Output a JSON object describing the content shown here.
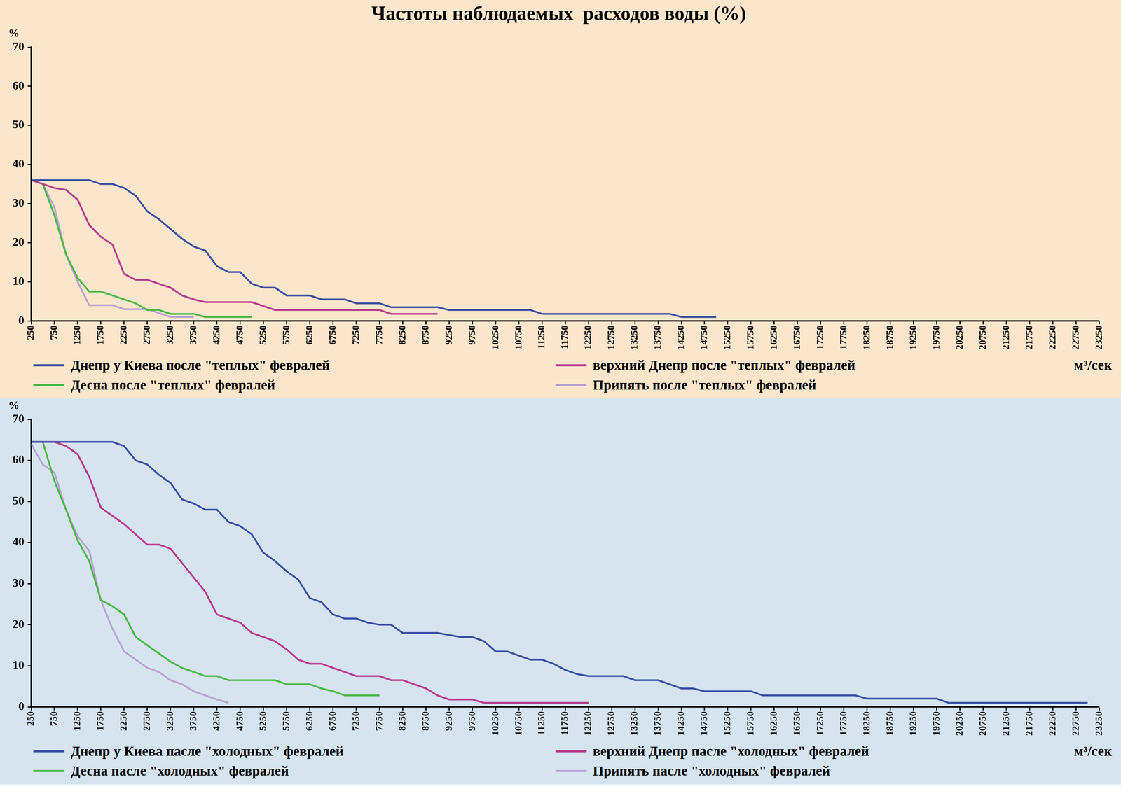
{
  "chart_data": [
    {
      "type": "line",
      "title": "Частоты наблюдаемых  расходов воды (%)",
      "y_label": "%",
      "x_label": "м³/сек",
      "x": [
        250,
        500,
        750,
        1000,
        1250,
        1500,
        1750,
        2000,
        2250,
        2500,
        2750,
        3000,
        3250,
        3500,
        3750,
        4000,
        4250,
        4500,
        4750,
        5000,
        5250,
        5500,
        5750,
        6000,
        6250,
        6500,
        6750,
        7000,
        7250,
        7500,
        7750,
        8000,
        8250,
        8500,
        8750,
        9000,
        9250,
        9500,
        9750,
        10000,
        10250,
        10500,
        10750,
        11000,
        11250,
        11500,
        11750,
        12000,
        12250,
        12500,
        12750,
        13000,
        13250,
        13500,
        13750,
        14000,
        14250,
        14500,
        14750,
        15000
      ],
      "xlim": [
        250,
        23250
      ],
      "xticks": [
        250,
        750,
        1250,
        1750,
        2250,
        2750,
        3250,
        3750,
        4250,
        4750,
        5250,
        5750,
        6250,
        6750,
        7250,
        7750,
        8250,
        8750,
        9250,
        9750,
        10250,
        10750,
        11250,
        11750,
        12250,
        12750,
        13250,
        13750,
        14250,
        14750,
        15250,
        15750,
        16250,
        16750,
        17250,
        17750,
        18250,
        18750,
        19250,
        19750,
        20250,
        20750,
        21250,
        21750,
        22250,
        22750,
        23250
      ],
      "ylim": [
        0,
        70
      ],
      "yticks": [
        0,
        10,
        20,
        30,
        40,
        50,
        60,
        70
      ],
      "grid": false,
      "legend": "bottom",
      "series": [
        {
          "name": "Днепр у Киева после \"теплых\" февралей",
          "color": "#3b4fa3",
          "values": [
            36,
            36,
            36,
            36,
            36,
            36,
            35,
            35,
            34,
            32,
            28,
            26,
            23.5,
            21,
            19,
            18,
            14,
            12.5,
            12.5,
            9.5,
            8.5,
            8.5,
            6.5,
            6.5,
            6.5,
            5.5,
            5.5,
            5.5,
            4.5,
            4.5,
            4.5,
            3.5,
            3.5,
            3.5,
            3.5,
            3.5,
            2.8,
            2.8,
            2.8,
            2.8,
            2.8,
            2.8,
            2.8,
            2.8,
            1.8,
            1.8,
            1.8,
            1.8,
            1.8,
            1.8,
            1.8,
            1.8,
            1.8,
            1.8,
            1.8,
            1.8,
            1,
            1,
            1,
            1
          ]
        },
        {
          "name": "верхний Днепр после \"теплых\" февралей",
          "color": "#b83c8f",
          "values": [
            36,
            35,
            34,
            33.5,
            31,
            24.5,
            21.5,
            19.5,
            12,
            10.5,
            10.5,
            9.5,
            8.5,
            6.5,
            5.5,
            4.8,
            4.8,
            4.8,
            4.8,
            4.8,
            3.8,
            2.8,
            2.8,
            2.8,
            2.8,
            2.8,
            2.8,
            2.8,
            2.8,
            2.8,
            2.8,
            1.8,
            1.8,
            1.8,
            1.8,
            1.8,
            null,
            null,
            null,
            null,
            null,
            null,
            null,
            null,
            null,
            null,
            null,
            null,
            null,
            null,
            null,
            null,
            null,
            null,
            null,
            null,
            null,
            null,
            null,
            null
          ]
        },
        {
          "name": "Десна после \"теплых\" февралей",
          "color": "#4cb848",
          "values": [
            36,
            35,
            27,
            17,
            11,
            7.5,
            7.5,
            6.5,
            5.5,
            4.5,
            2.8,
            2.8,
            1.8,
            1.8,
            1.8,
            1,
            1,
            1,
            1,
            1,
            null,
            null,
            null,
            null,
            null,
            null,
            null,
            null,
            null,
            null,
            null,
            null,
            null,
            null,
            null,
            null,
            null,
            null,
            null,
            null,
            null,
            null,
            null,
            null,
            null,
            null,
            null,
            null,
            null,
            null,
            null,
            null,
            null,
            null,
            null,
            null,
            null,
            null,
            null,
            null
          ]
        },
        {
          "name": "Припять после \"теплых\" февралей",
          "color": "#b9a2d2",
          "values": [
            36,
            35,
            29,
            17,
            10,
            4,
            4,
            4,
            3,
            3,
            3,
            2,
            1,
            1,
            1,
            null,
            null,
            null,
            null,
            null,
            null,
            null,
            null,
            null,
            null,
            null,
            null,
            null,
            null,
            null,
            null,
            null,
            null,
            null,
            null,
            null,
            null,
            null,
            null,
            null,
            null,
            null,
            null,
            null,
            null,
            null,
            null,
            null,
            null,
            null,
            null,
            null,
            null,
            null,
            null,
            null,
            null,
            null,
            null,
            null
          ]
        }
      ]
    },
    {
      "type": "line",
      "y_label": "%",
      "x_label": "м³/сек",
      "x": [
        250,
        500,
        750,
        1000,
        1250,
        1500,
        1750,
        2000,
        2250,
        2500,
        2750,
        3000,
        3250,
        3500,
        3750,
        4000,
        4250,
        4500,
        4750,
        5000,
        5250,
        5500,
        5750,
        6000,
        6250,
        6500,
        6750,
        7000,
        7250,
        7500,
        7750,
        8000,
        8250,
        8500,
        8750,
        9000,
        9250,
        9500,
        9750,
        10000,
        10250,
        10500,
        10750,
        11000,
        11250,
        11500,
        11750,
        12000,
        12250,
        12500,
        12750,
        13000,
        13250,
        13500,
        13750,
        14000,
        14250,
        14500,
        14750,
        15000,
        15250,
        15500,
        15750,
        16000,
        16250,
        16500,
        16750,
        17000,
        17250,
        17500,
        17750,
        18000,
        18250,
        18500,
        18750,
        19000,
        19250,
        19500,
        19750,
        20000,
        20250,
        20500,
        20750,
        21000,
        21250,
        21500,
        21750,
        22000,
        22250,
        22500,
        22750,
        23000
      ],
      "xlim": [
        250,
        23250
      ],
      "xticks": [
        250,
        750,
        1250,
        1750,
        2250,
        2750,
        3250,
        3750,
        4250,
        4750,
        5250,
        5750,
        6250,
        6750,
        7250,
        7750,
        8250,
        8750,
        9250,
        9750,
        10250,
        10750,
        11250,
        11750,
        12250,
        12750,
        13250,
        13750,
        14250,
        14750,
        15250,
        15750,
        16250,
        16750,
        17250,
        17750,
        18250,
        18750,
        19250,
        19750,
        20250,
        20750,
        21250,
        21750,
        22250,
        22750,
        23250
      ],
      "ylim": [
        0,
        70
      ],
      "yticks": [
        0,
        10,
        20,
        30,
        40,
        50,
        60,
        70
      ],
      "grid": false,
      "legend": "bottom",
      "series": [
        {
          "name": "Днепр у Киева пасле \"холодных\" февралей",
          "color": "#3b4fa3",
          "values": [
            64.5,
            64.5,
            64.5,
            64.5,
            64.5,
            64.5,
            64.5,
            64.5,
            63.5,
            60,
            59,
            56.5,
            54.5,
            50.5,
            49.5,
            48,
            48,
            45,
            44,
            42,
            37.5,
            35.5,
            33,
            31,
            26.5,
            25.5,
            22.5,
            21.5,
            21.5,
            20.5,
            20,
            20,
            18,
            18,
            18,
            18,
            17.5,
            17,
            17,
            16,
            13.5,
            13.5,
            12.5,
            11.5,
            11.5,
            10.5,
            9,
            8,
            7.5,
            7.5,
            7.5,
            7.5,
            6.5,
            6.5,
            6.5,
            5.5,
            4.5,
            4.5,
            3.8,
            3.8,
            3.8,
            3.8,
            3.8,
            2.8,
            2.8,
            2.8,
            2.8,
            2.8,
            2.8,
            2.8,
            2.8,
            2.8,
            2,
            2,
            2,
            2,
            2,
            2,
            2,
            1,
            1,
            1,
            1,
            1,
            1,
            1,
            1,
            1,
            1,
            1,
            1,
            1
          ]
        },
        {
          "name": "верхний Днепр пасле \"холодных\" февралей",
          "color": "#b83c8f",
          "values": [
            64.5,
            64.5,
            64.5,
            63.5,
            61.5,
            56,
            48.5,
            46.5,
            44.5,
            42,
            39.5,
            39.5,
            38.5,
            35,
            31.5,
            28,
            22.5,
            21.5,
            20.5,
            18,
            17,
            16,
            14,
            11.5,
            10.5,
            10.5,
            9.5,
            8.5,
            7.5,
            7.5,
            7.5,
            6.5,
            6.5,
            5.5,
            4.5,
            2.8,
            1.8,
            1.8,
            1.8,
            1,
            1,
            1,
            1,
            1,
            1,
            1,
            1,
            1,
            1,
            null,
            null,
            null,
            null,
            null,
            null,
            null,
            null,
            null,
            null,
            null,
            null,
            null,
            null,
            null,
            null,
            null,
            null,
            null,
            null,
            null,
            null,
            null,
            null,
            null,
            null,
            null,
            null,
            null,
            null,
            null,
            null,
            null,
            null,
            null,
            null,
            null,
            null,
            null,
            null,
            null,
            null,
            null
          ]
        },
        {
          "name": "Десна пасле \"холодных\" февралей",
          "color": "#4cb848",
          "values": [
            64.5,
            64.5,
            55,
            48,
            40.5,
            35.5,
            26,
            24.5,
            22.5,
            17,
            15,
            13,
            11,
            9.5,
            8.5,
            7.5,
            7.5,
            6.5,
            6.5,
            6.5,
            6.5,
            6.5,
            5.5,
            5.5,
            5.5,
            4.5,
            3.8,
            2.8,
            2.8,
            2.8,
            2.8,
            null,
            null,
            null,
            null,
            null,
            null,
            null,
            null,
            null,
            null,
            null,
            null,
            null,
            null,
            null,
            null,
            null,
            null,
            null,
            null,
            null,
            null,
            null,
            null,
            null,
            null,
            null,
            null,
            null,
            null,
            null,
            null,
            null,
            null,
            null,
            null,
            null,
            null,
            null,
            null,
            null,
            null,
            null,
            null,
            null,
            null,
            null,
            null,
            null,
            null,
            null,
            null,
            null,
            null,
            null,
            null,
            null,
            null,
            null,
            null,
            null
          ]
        },
        {
          "name": "Припять пасле \"холодных\" февралей",
          "color": "#b9a2d2",
          "values": [
            64,
            59,
            57,
            48,
            41.5,
            38,
            26,
            19,
            13.5,
            11.5,
            9.5,
            8.5,
            6.5,
            5.5,
            3.8,
            2.8,
            1.8,
            1,
            null,
            null,
            null,
            null,
            null,
            null,
            null,
            null,
            null,
            null,
            null,
            null,
            null,
            null,
            null,
            null,
            null,
            null,
            null,
            null,
            null,
            null,
            null,
            null,
            null,
            null,
            null,
            null,
            null,
            null,
            null,
            null,
            null,
            null,
            null,
            null,
            null,
            null,
            null,
            null,
            null,
            null,
            null,
            null,
            null,
            null,
            null,
            null,
            null,
            null,
            null,
            null,
            null,
            null,
            null,
            null,
            null,
            null,
            null,
            null,
            null,
            null,
            null,
            null,
            null,
            null,
            null,
            null,
            null,
            null,
            null,
            null,
            null,
            null
          ]
        }
      ]
    }
  ]
}
